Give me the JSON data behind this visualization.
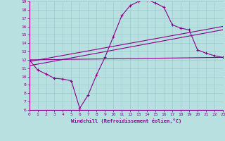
{
  "xlabel": "Windchill (Refroidissement éolien,°C)",
  "xlim": [
    0,
    23
  ],
  "ylim": [
    6,
    19
  ],
  "yticks": [
    6,
    7,
    8,
    9,
    10,
    11,
    12,
    13,
    14,
    15,
    16,
    17,
    18,
    19
  ],
  "xticks": [
    0,
    1,
    2,
    3,
    4,
    5,
    6,
    7,
    8,
    9,
    10,
    11,
    12,
    13,
    14,
    15,
    16,
    17,
    18,
    19,
    20,
    21,
    22,
    23
  ],
  "background_color": "#b8e0e0",
  "grid_color": "#99cccc",
  "line_color": "#880088",
  "curve1_x": [
    0,
    1,
    2,
    3,
    4,
    5,
    6,
    7,
    8,
    9,
    10,
    11,
    12,
    13,
    14,
    15,
    16,
    17,
    18,
    19,
    20,
    21,
    22,
    23
  ],
  "curve1_y": [
    12.0,
    10.8,
    10.3,
    9.8,
    9.7,
    9.5,
    6.2,
    7.8,
    10.2,
    12.3,
    14.8,
    17.3,
    18.5,
    19.0,
    19.2,
    18.8,
    18.3,
    16.2,
    15.8,
    15.6,
    13.2,
    12.8,
    12.5,
    12.3
  ],
  "line1_x": [
    0,
    23
  ],
  "line1_y": [
    12.0,
    12.3
  ],
  "line2_x": [
    0,
    23
  ],
  "line2_y": [
    11.8,
    16.0
  ],
  "line3_x": [
    0,
    23
  ],
  "line3_y": [
    11.3,
    15.6
  ]
}
